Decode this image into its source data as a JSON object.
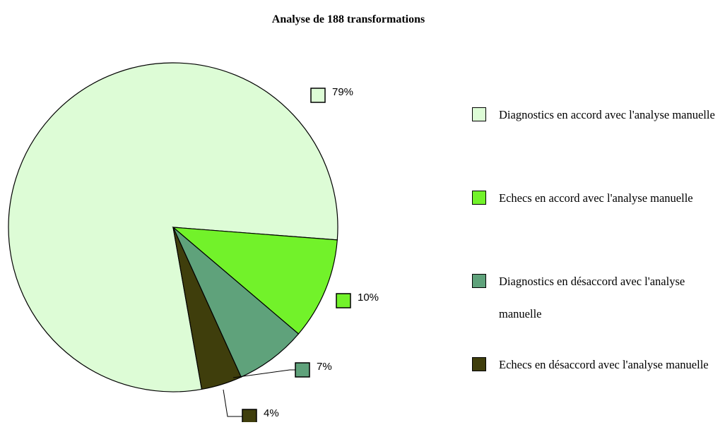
{
  "chart_data": {
    "type": "pie",
    "title": "Analyse de 188 transformations",
    "categories": [
      "Diagnostics en accord avec l'analyse manuelle",
      "Echecs en accord avec l'analyse manuelle",
      "Diagnostics en désaccord avec l'analyse manuelle",
      "Echecs en désaccord avec l'analyse manuelle"
    ],
    "values": [
      79,
      10,
      7,
      4
    ],
    "value_labels": [
      "79%",
      "10%",
      "7%",
      "4%"
    ],
    "colors": [
      "#ddfcd6",
      "#72f22a",
      "#5fa27b",
      "#3f3e0c"
    ],
    "legend": "right"
  }
}
